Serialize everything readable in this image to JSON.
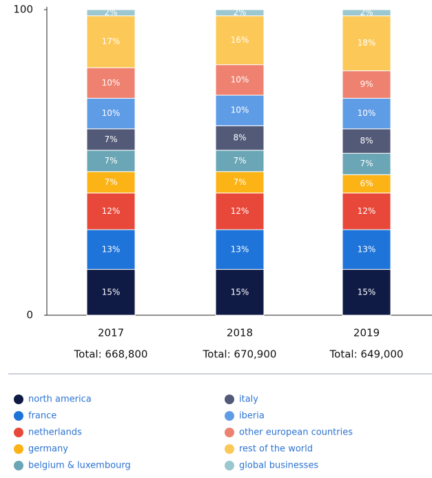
{
  "chart_data": {
    "type": "stacked_bar",
    "categories": [
      "2017",
      "2018",
      "2019"
    ],
    "totals": [
      "Total: 668,800",
      "Total: 670,900",
      "Total: 649,000"
    ],
    "ylim": [
      0,
      100
    ],
    "yticks": [
      0,
      100
    ],
    "series": [
      {
        "name": "north america",
        "color": "#0f1a45",
        "values": [
          15,
          15,
          15
        ],
        "value_labels": [
          "15%",
          "15%",
          "15%"
        ]
      },
      {
        "name": "france",
        "color": "#1f74d9",
        "values": [
          13,
          13,
          13
        ],
        "value_labels": [
          "13%",
          "13%",
          "13%"
        ]
      },
      {
        "name": "netherlands",
        "color": "#e8483a",
        "values": [
          12,
          12,
          12
        ],
        "value_labels": [
          "12%",
          "12%",
          "12%"
        ]
      },
      {
        "name": "germany",
        "color": "#fbb316",
        "values": [
          7,
          7,
          6
        ],
        "value_labels": [
          "7%",
          "7%",
          "6%"
        ]
      },
      {
        "name": "belgium & luxembourg",
        "color": "#6aa6b5",
        "values": [
          7,
          7,
          7
        ],
        "value_labels": [
          "7%",
          "7%",
          "7%"
        ]
      },
      {
        "name": "italy",
        "color": "#525a78",
        "values": [
          7,
          8,
          8
        ],
        "value_labels": [
          "7%",
          "8%",
          "8%"
        ]
      },
      {
        "name": "iberia",
        "color": "#5f9ce6",
        "values": [
          10,
          10,
          10
        ],
        "value_labels": [
          "10%",
          "10%",
          "10%"
        ]
      },
      {
        "name": "other european countries",
        "color": "#ee8170",
        "values": [
          10,
          10,
          9
        ],
        "value_labels": [
          "10%",
          "10%",
          "9%"
        ]
      },
      {
        "name": "rest of the world",
        "color": "#fcc857",
        "values": [
          17,
          16,
          18
        ],
        "value_labels": [
          "17%",
          "16%",
          "18%"
        ]
      },
      {
        "name": "global businesses",
        "color": "#9ac7d0",
        "values": [
          2,
          2,
          2
        ],
        "value_labels": [
          "2%",
          "2%",
          "2%"
        ]
      }
    ]
  }
}
